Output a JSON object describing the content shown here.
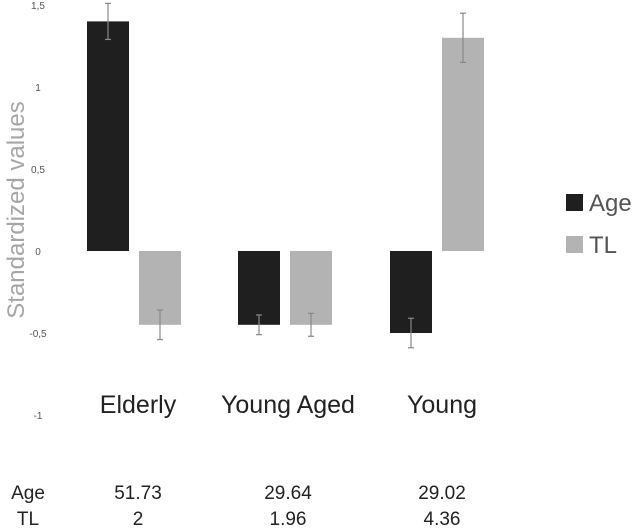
{
  "chart_data": {
    "type": "bar",
    "title": "",
    "xlabel": "",
    "ylabel": "Standardized values",
    "ylim": [
      -1,
      1.5
    ],
    "yticks": [
      1.5,
      1,
      0.5,
      0,
      -0.5,
      -1
    ],
    "ytick_labels": [
      "1,5",
      "1",
      "0,5",
      "0",
      "-0,5",
      "-1"
    ],
    "categories": [
      "Elderly",
      "Young Aged",
      "Young"
    ],
    "series": [
      {
        "name": "Age",
        "color": "#1f1f1f",
        "values": [
          1.4,
          -0.45,
          -0.5
        ],
        "errors": [
          0.11,
          0.06,
          0.09
        ]
      },
      {
        "name": "TL",
        "color": "#b3b3b3",
        "values": [
          -0.45,
          -0.45,
          1.3
        ],
        "errors": [
          0.09,
          0.07,
          0.15
        ]
      }
    ],
    "legend": {
      "placement": "right",
      "entries": [
        "Age",
        "TL"
      ]
    },
    "grid": false,
    "table": {
      "rows": [
        {
          "label": "Age",
          "values": [
            "51.73",
            "29.64",
            "29.02"
          ]
        },
        {
          "label": "TL",
          "values": [
            "2",
            "1.96",
            "4.36"
          ]
        }
      ]
    }
  }
}
